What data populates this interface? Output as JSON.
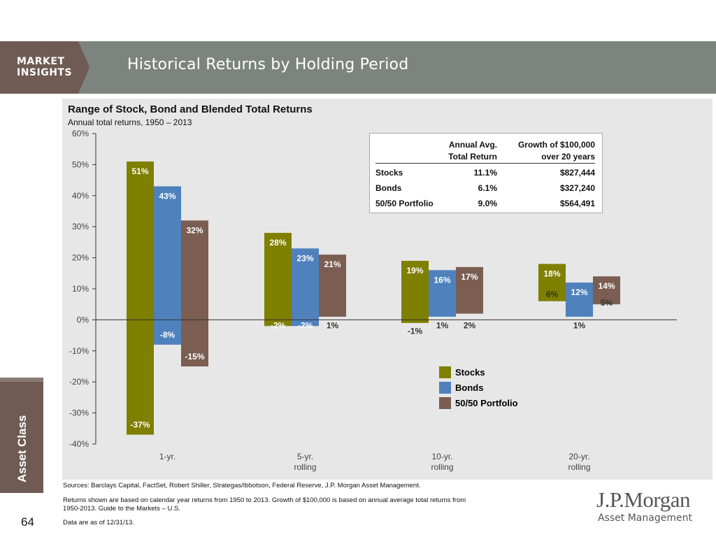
{
  "header": {
    "brand_line1": "MARKET",
    "brand_line2": "INSIGHTS",
    "title": "Historical Returns by Holding Period",
    "colors": {
      "bar": "#7d8480",
      "brand_box": "#6f5b54"
    }
  },
  "side_tab": {
    "label": "Asset Class"
  },
  "page_number": "64",
  "chart_data": {
    "type": "bar",
    "subtype": "floating-range",
    "title": "Range of Stock, Bond and Blended Total Returns",
    "subtitle": "Annual total returns, 1950 – 2013",
    "ylim": [
      -40,
      60
    ],
    "yticks": [
      60,
      50,
      40,
      30,
      20,
      10,
      0,
      -10,
      -20,
      -30,
      -40
    ],
    "ytick_labels": [
      "60%",
      "50%",
      "40%",
      "30%",
      "20%",
      "10%",
      "0%",
      "-10%",
      "-20%",
      "-30%",
      "-40%"
    ],
    "categories": [
      {
        "line1": "1-yr.",
        "line2": ""
      },
      {
        "line1": "5-yr.",
        "line2": "rolling"
      },
      {
        "line1": "10-yr.",
        "line2": "rolling"
      },
      {
        "line1": "20-yr.",
        "line2": "rolling"
      }
    ],
    "series": [
      {
        "name": "Stocks",
        "color": "#7f7f00",
        "high": [
          51,
          28,
          19,
          18
        ],
        "low": [
          -37,
          -2,
          -1,
          6
        ],
        "high_labels": [
          "51%",
          "28%",
          "19%",
          "18%"
        ],
        "low_labels": [
          "-37%",
          "-2%",
          "-1%",
          "6%"
        ]
      },
      {
        "name": "Bonds",
        "color": "#4f81bd",
        "high": [
          43,
          23,
          16,
          12
        ],
        "low": [
          -8,
          -2,
          1,
          1
        ],
        "high_labels": [
          "43%",
          "23%",
          "16%",
          "12%"
        ],
        "low_labels": [
          "-8%",
          "-2%",
          "1%",
          "1%"
        ]
      },
      {
        "name": "50/50 Portfolio",
        "color": "#7b5d52",
        "high": [
          32,
          21,
          17,
          14
        ],
        "low": [
          -15,
          1,
          2,
          5
        ],
        "high_labels": [
          "32%",
          "21%",
          "17%",
          "14%"
        ],
        "low_labels": [
          "-15%",
          "1%",
          "2%",
          "5%"
        ]
      }
    ],
    "legend": [
      "Stocks",
      "Bonds",
      "50/50 Portfolio"
    ],
    "legend_placement": "bottom-right",
    "grid": false
  },
  "summary_table": {
    "headers": [
      "Annual Avg.",
      "Total Return",
      "Growth of $100,000",
      "over 20 years"
    ],
    "rows": [
      {
        "label": "Stocks",
        "avg": "11.1%",
        "growth": "$827,444"
      },
      {
        "label": "Bonds",
        "avg": "6.1%",
        "growth": "$327,240"
      },
      {
        "label": "50/50 Portfolio",
        "avg": "9.0%",
        "growth": "$564,491"
      }
    ]
  },
  "footnotes": {
    "sources": "Sources: Barclays Capital, FactSet, Robert Shiller, Strategas/Ibbotson, Federal Reserve, J.P. Morgan Asset Management.",
    "note_line1": "Returns shown are based on calendar year returns from 1950 to 2013. Growth of $100,000 is based on annual average total returns from",
    "note_line2": "1950-2013. Guide to the Markets – U.S.",
    "date": "Data are as of 12/31/13."
  },
  "logo": {
    "name": "J.P.Morgan",
    "sub": "Asset Management"
  }
}
